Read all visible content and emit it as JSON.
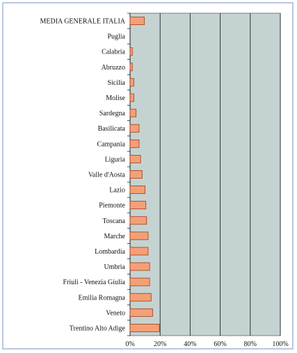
{
  "chart_data": {
    "type": "bar",
    "orientation": "horizontal",
    "categories": [
      "MEDIA GENERALE ITALIA",
      "Puglia",
      "Calabria",
      "Abruzzo",
      "Sicilia",
      "Molise",
      "Sardegna",
      "Basilicata",
      "Campania",
      "Liguria",
      "Valle d'Aosta",
      "Lazio",
      "Piemonte",
      "Toscana",
      "Marche",
      "Lombardia",
      "Umbria",
      "Friuli - Venezia Giulia",
      "Emilia Romagna",
      "Veneto",
      "Trentino Alto Adige"
    ],
    "values": [
      9.5,
      0,
      1.5,
      1.5,
      2.5,
      2.5,
      4,
      6,
      6,
      7,
      8,
      10,
      10.5,
      11,
      12,
      12,
      13,
      13,
      14,
      15,
      19.5
    ],
    "x_ticks": [
      "0%",
      "20%",
      "40%",
      "60%",
      "80%",
      "100%"
    ],
    "xlim": [
      0,
      100
    ],
    "title": "",
    "xlabel": "",
    "ylabel": "",
    "grid": "vertical",
    "legend": "none",
    "colors": {
      "bar_fill": "#f4a077",
      "bar_stroke": "#a33a12",
      "plot_background": "#c4d3d2",
      "gridline": "#222222"
    }
  }
}
